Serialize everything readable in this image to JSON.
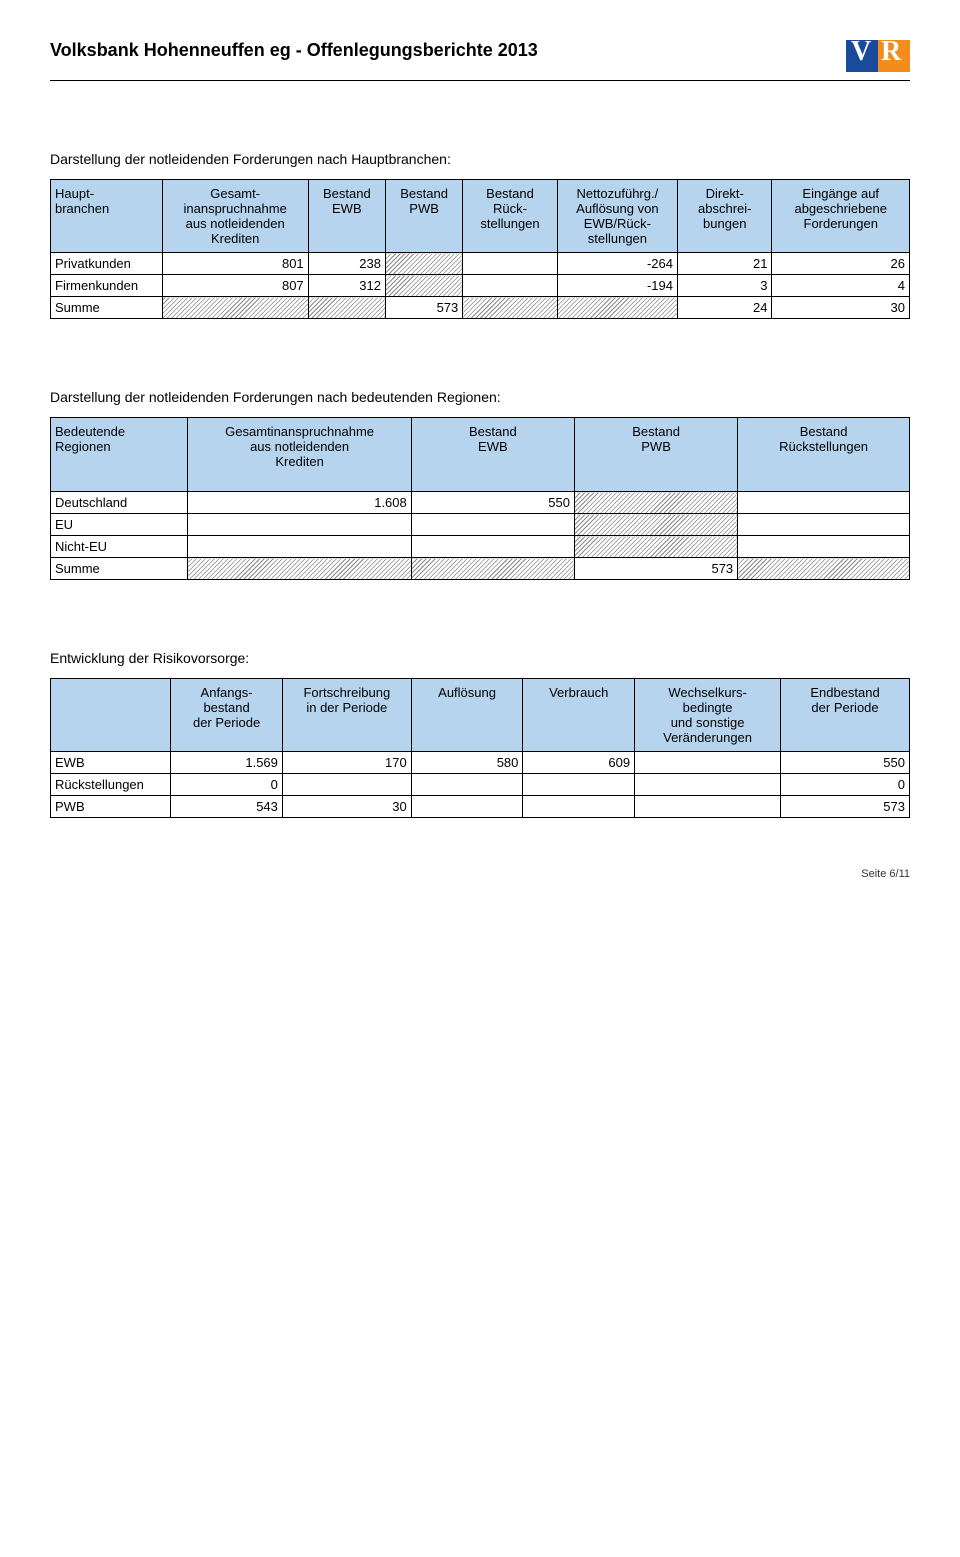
{
  "header": {
    "title": "Volksbank Hohenneuffen eg - Offenlegungsberichte 2013"
  },
  "t1": {
    "title": "Darstellung der notleidenden Forderungen nach Hauptbranchen:",
    "cols": {
      "c0": "Haupt-\nbranchen",
      "c1": "Gesamt-\ninanspruchnahme\naus notleidenden\nKrediten",
      "c2": "Bestand\nEWB",
      "c3": "Bestand\nPWB",
      "c4": "Bestand\nRück-\nstellungen",
      "c5": "Nettozuführg./\nAuflösung von\nEWB/Rück-\nstellungen",
      "c6": "Direkt-\nabschrei-\nbungen",
      "c7": "Eingänge auf\nabgeschriebene\nForderungen"
    },
    "rows": [
      {
        "label": "Privatkunden",
        "v1": "801",
        "v2": "238",
        "v3": "H",
        "v4": "",
        "v5": "-264",
        "v6": "21",
        "v7": "26"
      },
      {
        "label": "Firmenkunden",
        "v1": "807",
        "v2": "312",
        "v3": "H",
        "v4": "",
        "v5": "-194",
        "v6": "3",
        "v7": "4"
      },
      {
        "label": "Summe",
        "v1": "H",
        "v2": "H",
        "v3": "573",
        "v4": "H",
        "v5": "H",
        "v6": "24",
        "v7": "30"
      }
    ]
  },
  "t2": {
    "title": "Darstellung der notleidenden Forderungen nach bedeutenden Regionen:",
    "cols": {
      "c0": "Bedeutende\nRegionen",
      "c1": "Gesamtinanspruchnahme\naus notleidenden\nKrediten",
      "c2": "Bestand\nEWB",
      "c3": "Bestand\nPWB",
      "c4": "Bestand\nRückstellungen"
    },
    "rows": [
      {
        "label": "Deutschland",
        "v1": "1.608",
        "v2": "550",
        "v3": "H",
        "v4": ""
      },
      {
        "label": "EU",
        "v1": "",
        "v2": "",
        "v3": "H",
        "v4": ""
      },
      {
        "label": "Nicht-EU",
        "v1": "",
        "v2": "",
        "v3": "H",
        "v4": ""
      },
      {
        "label": "Summe",
        "v1": "H",
        "v2": "H",
        "v3": "573",
        "v4": "H"
      }
    ]
  },
  "t3": {
    "title": "Entwicklung der Risikovorsorge:",
    "cols": {
      "c0": "",
      "c1": "Anfangs-\nbestand\nder Periode",
      "c2": "Fortschreibung\nin der Periode",
      "c3": "Auflösung",
      "c4": "Verbrauch",
      "c5": "Wechselkurs-\nbedingte\nund sonstige\nVeränderungen",
      "c6": "Endbestand\nder Periode"
    },
    "rows": [
      {
        "label": "EWB",
        "v1": "1.569",
        "v2": "170",
        "v3": "580",
        "v4": "609",
        "v5": "",
        "v6": "550"
      },
      {
        "label": "Rückstellungen",
        "v1": "0",
        "v2": "",
        "v3": "",
        "v4": "",
        "v5": "",
        "v6": "0"
      },
      {
        "label": "PWB",
        "v1": "543",
        "v2": "30",
        "v3": "",
        "v4": "",
        "v5": "",
        "v6": "573"
      }
    ]
  },
  "footer": {
    "page": "Seite 6/11"
  }
}
